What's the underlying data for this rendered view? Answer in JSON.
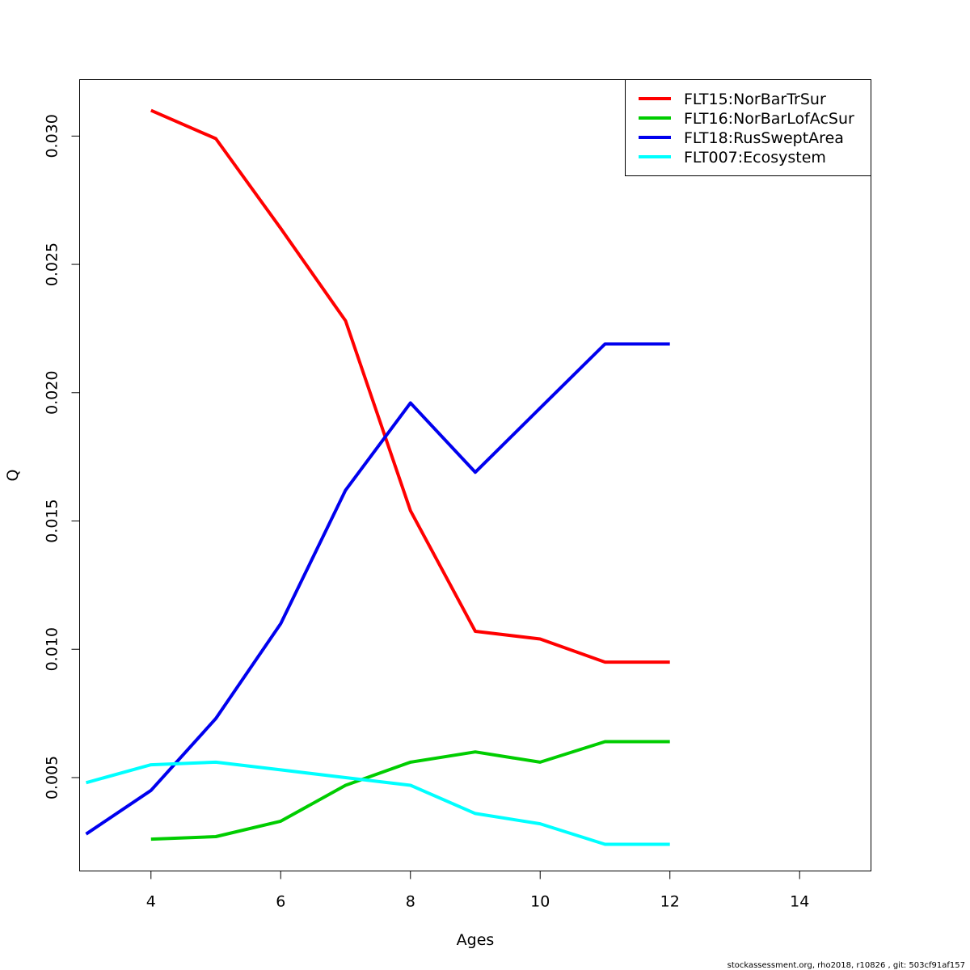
{
  "chart_data": {
    "type": "line",
    "xlabel": "Ages",
    "ylabel": "Q",
    "xlim": [
      2.9,
      15.1
    ],
    "ylim": [
      0.00136,
      0.0322
    ],
    "x_ticks": [
      4,
      6,
      8,
      10,
      12,
      14
    ],
    "x_tick_labels": [
      "4",
      "6",
      "8",
      "10",
      "12",
      "14"
    ],
    "y_ticks": [
      0.005,
      0.01,
      0.015,
      0.02,
      0.025,
      0.03
    ],
    "y_tick_labels": [
      "0.005",
      "0.010",
      "0.015",
      "0.020",
      "0.025",
      "0.030"
    ],
    "grid": false,
    "legend_position": "top-right",
    "series": [
      {
        "name": "FLT15:NorBarTrSur",
        "color": "#ff0000",
        "x": [
          4,
          5,
          6,
          7,
          8,
          9,
          10,
          11,
          12
        ],
        "values": [
          0.031,
          0.0299,
          0.0264,
          0.0228,
          0.0154,
          0.0107,
          0.0104,
          0.0095,
          0.0095
        ]
      },
      {
        "name": "FLT16:NorBarLofAcSur",
        "color": "#00cd00",
        "x": [
          4,
          5,
          6,
          7,
          8,
          9,
          10,
          11,
          12
        ],
        "values": [
          0.0026,
          0.0027,
          0.0033,
          0.0047,
          0.0056,
          0.006,
          0.0056,
          0.0064,
          0.0064
        ]
      },
      {
        "name": "FLT18:RusSweptArea",
        "color": "#0000ee",
        "x": [
          3,
          4,
          5,
          6,
          7,
          8,
          9,
          10,
          11,
          12
        ],
        "values": [
          0.0028,
          0.0045,
          0.0073,
          0.011,
          0.0162,
          0.0196,
          0.0169,
          0.0194,
          0.0219,
          0.0219
        ]
      },
      {
        "name": "FLT007:Ecosystem",
        "color": "#00ffff",
        "x": [
          3,
          4,
          5,
          6,
          7,
          8,
          9,
          10,
          11,
          12
        ],
        "values": [
          0.0048,
          0.0055,
          0.0056,
          0.0053,
          0.005,
          0.0047,
          0.0036,
          0.0032,
          0.0024,
          0.0024
        ]
      }
    ]
  },
  "footer": "stockassessment.org, rho2018, r10826 , git: 503cf91af157"
}
